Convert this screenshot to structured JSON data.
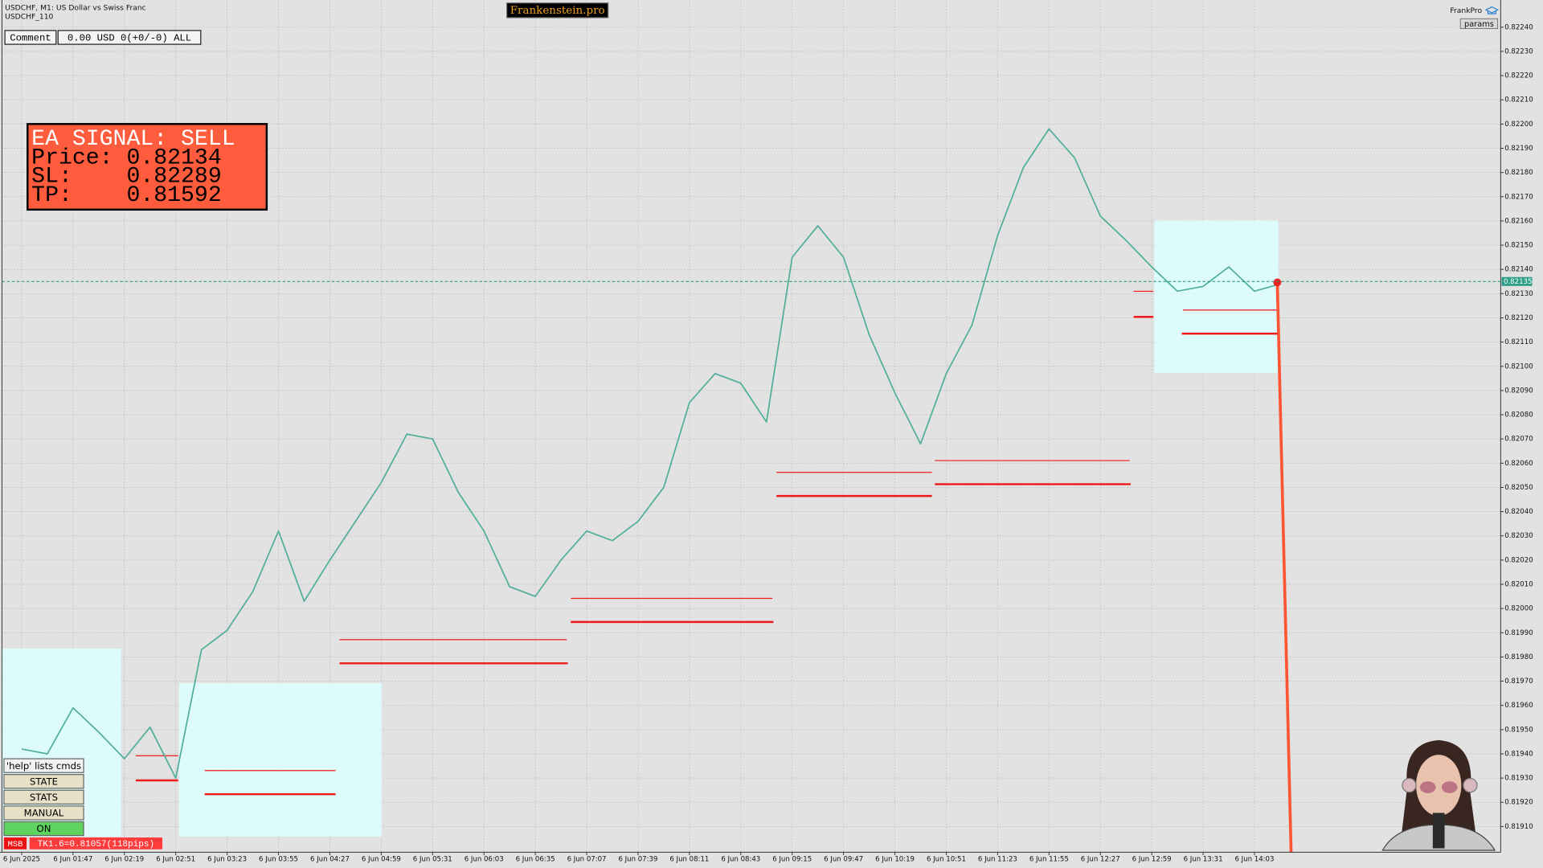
{
  "chart_data": {
    "type": "line",
    "title": "USDCHF, M1:  US Dollar vs Swiss Franc",
    "subtitle": "USDCHF_110",
    "categories": [
      "6 Jun 2025",
      null,
      "6 Jun 01:47",
      null,
      "6 Jun 02:19",
      null,
      "6 Jun 02:51",
      null,
      "6 Jun 03:23",
      null,
      "6 Jun 03:55",
      null,
      "6 Jun 04:27",
      null,
      "6 Jun 04:59",
      null,
      "6 Jun 05:31",
      null,
      "6 Jun 06:03",
      null,
      "6 Jun 06:35",
      null,
      "6 Jun 07:07",
      null,
      "6 Jun 07:39",
      null,
      "6 Jun 08:11",
      null,
      "6 Jun 08:43",
      null,
      "6 Jun 09:15",
      null,
      "6 Jun 09:47",
      null,
      "6 Jun 10:19",
      null,
      "6 Jun 10:51",
      null,
      "6 Jun 11:23",
      null,
      "6 Jun 11:55",
      null,
      "6 Jun 12:27",
      null,
      "6 Jun 12:59",
      null,
      "6 Jun 13:31",
      null,
      "6 Jun 14:03",
      null
    ],
    "values": [
      0.81942,
      0.8194,
      0.81959,
      0.81949,
      0.81938,
      0.81951,
      0.8193,
      0.81983,
      0.81991,
      0.82007,
      0.82032,
      0.82003,
      0.8202,
      0.82036,
      0.82052,
      0.82072,
      0.8207,
      0.82048,
      0.82032,
      0.82009,
      0.82005,
      0.8202,
      0.82032,
      0.82028,
      0.82036,
      0.8205,
      0.82085,
      0.82097,
      0.82093,
      0.82077,
      0.82145,
      0.82158,
      0.82145,
      0.82113,
      0.82089,
      0.82068,
      0.82097,
      0.82117,
      0.82154,
      0.82182,
      0.82198,
      0.82186,
      0.82162,
      0.82152,
      0.82141,
      0.82131,
      0.82133,
      0.82141,
      0.82131,
      0.82134
    ],
    "color": "#4fae9a",
    "ylim": [
      0.81901,
      0.8225
    ],
    "yticks": [
      {
        "value": 0.8191,
        "label": "0.81910"
      },
      {
        "value": 0.8192,
        "label": "0.81920"
      },
      {
        "value": 0.8193,
        "label": "0.81930"
      },
      {
        "value": 0.8194,
        "label": "0.81940"
      },
      {
        "value": 0.8195,
        "label": "0.81950"
      },
      {
        "value": 0.8196,
        "label": "0.81960"
      },
      {
        "value": 0.8197,
        "label": "0.81970"
      },
      {
        "value": 0.8198,
        "label": "0.81980"
      },
      {
        "value": 0.8199,
        "label": "0.81990"
      },
      {
        "value": 0.82,
        "label": "0.82000"
      },
      {
        "value": 0.8201,
        "label": "0.82010"
      },
      {
        "value": 0.8202,
        "label": "0.82020"
      },
      {
        "value": 0.8203,
        "label": "0.82030"
      },
      {
        "value": 0.8204,
        "label": "0.82040"
      },
      {
        "value": 0.8205,
        "label": "0.82050"
      },
      {
        "value": 0.8206,
        "label": "0.82060"
      },
      {
        "value": 0.8207,
        "label": "0.82070"
      },
      {
        "value": 0.8208,
        "label": "0.82080"
      },
      {
        "value": 0.8209,
        "label": "0.82090"
      },
      {
        "value": 0.821,
        "label": "0.82100"
      },
      {
        "value": 0.8211,
        "label": "0.82110"
      },
      {
        "value": 0.8212,
        "label": "0.82120"
      },
      {
        "value": 0.8213,
        "label": "0.82130"
      },
      {
        "value": 0.8214,
        "label": "0.82140"
      },
      {
        "value": 0.8215,
        "label": "0.82150"
      },
      {
        "value": 0.8216,
        "label": "0.82160"
      },
      {
        "value": 0.8217,
        "label": "0.82170"
      },
      {
        "value": 0.8218,
        "label": "0.82180"
      },
      {
        "value": 0.8219,
        "label": "0.82190"
      },
      {
        "value": 0.822,
        "label": "0.82200"
      },
      {
        "value": 0.8221,
        "label": "0.82210"
      },
      {
        "value": 0.8222,
        "label": "0.82220"
      },
      {
        "value": 0.8223,
        "label": "0.82230"
      },
      {
        "value": 0.8224,
        "label": "0.82240"
      }
    ],
    "grid": true,
    "current_price": 0.82135
  },
  "ui": {
    "brand": "Frankenstein.pro",
    "user": "FrankPro",
    "params": "params",
    "comment_label": "Comment",
    "comment_value": "0.00 USD 0(+0/-0) ALL",
    "signal": [
      "EA SIGNAL: SELL",
      "Price: 0.82134",
      "SL:    0.82289",
      "TP:    0.81592"
    ],
    "buttons": [
      "'help' lists cmds",
      "STATE",
      "STATS",
      "MANUAL",
      "ON"
    ],
    "status_tag": "MSB",
    "status_text": "TK1.6=0.81057(118pips)"
  }
}
